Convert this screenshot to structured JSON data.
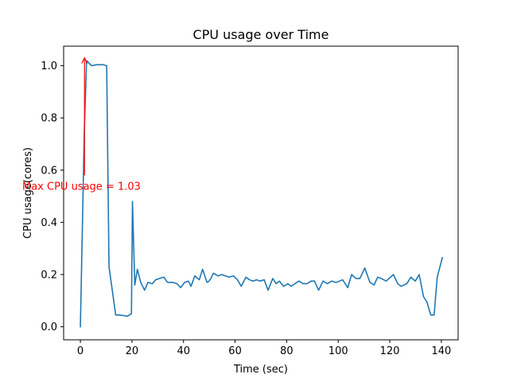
{
  "chart_data": {
    "type": "line",
    "title": "CPU usage over Time",
    "xlabel": "Time (sec)",
    "ylabel": "CPU usage(cores)",
    "xlim": [
      -6.5,
      146.5
    ],
    "ylim": [
      -0.05,
      1.075
    ],
    "xticks": [
      0,
      20,
      40,
      60,
      80,
      100,
      120,
      140
    ],
    "yticks": [
      0.0,
      0.2,
      0.4,
      0.6,
      0.8,
      1.0
    ],
    "ytick_labels": [
      "0.0",
      "0.2",
      "0.4",
      "0.6",
      "0.8",
      "1.0"
    ],
    "grid": false,
    "line_color": "#1f77b4",
    "series": [
      {
        "name": "CPU usage",
        "x": [
          0,
          1.5,
          2.4,
          4.3,
          6.2,
          8.7,
          10.2,
          11.1,
          13.7,
          14.9,
          16.8,
          18.2,
          19.8,
          20.2,
          21.1,
          22.1,
          23.4,
          24.9,
          26.2,
          27.9,
          29.2,
          30.7,
          32.4,
          33.8,
          35.9,
          37.5,
          38.9,
          40.4,
          41.9,
          42.9,
          44.4,
          46.1,
          47.4,
          49.1,
          49.9,
          50.6,
          51.6,
          53.4,
          54.9,
          56.2,
          57.7,
          59.4,
          60.9,
          62.4,
          64.2,
          65.6,
          66.9,
          68.4,
          69.7,
          71.3,
          72.8,
          74.6,
          75.9,
          77.2,
          78.8,
          80.5,
          81.7,
          83.2,
          84.8,
          86.4,
          87.9,
          89.5,
          90.8,
          92.4,
          94.1,
          95.8,
          97.5,
          99.1,
          100.5,
          101.7,
          103.7,
          105.2,
          106.9,
          108.4,
          110.3,
          112.3,
          113.9,
          115.3,
          116.7,
          118.6,
          121.4,
          123.1,
          124.4,
          126.6,
          128.2,
          129.9,
          131.4,
          133.1,
          134.4,
          135.9,
          137.2,
          138.4,
          140.4
        ],
        "y": [
          0.0,
          0.74,
          1.02,
          1.0,
          1.004,
          1.004,
          1.0,
          0.23,
          0.045,
          0.045,
          0.043,
          0.04,
          0.05,
          0.48,
          0.16,
          0.22,
          0.17,
          0.14,
          0.17,
          0.165,
          0.18,
          0.185,
          0.19,
          0.17,
          0.17,
          0.165,
          0.15,
          0.17,
          0.175,
          0.155,
          0.195,
          0.18,
          0.22,
          0.17,
          0.175,
          0.185,
          0.205,
          0.195,
          0.2,
          0.195,
          0.19,
          0.195,
          0.18,
          0.155,
          0.19,
          0.18,
          0.175,
          0.18,
          0.175,
          0.18,
          0.14,
          0.185,
          0.165,
          0.175,
          0.155,
          0.165,
          0.155,
          0.165,
          0.175,
          0.165,
          0.165,
          0.175,
          0.175,
          0.14,
          0.175,
          0.165,
          0.175,
          0.17,
          0.175,
          0.18,
          0.15,
          0.2,
          0.185,
          0.185,
          0.225,
          0.17,
          0.16,
          0.19,
          0.185,
          0.175,
          0.2,
          0.165,
          0.155,
          0.165,
          0.19,
          0.175,
          0.2,
          0.115,
          0.095,
          0.045,
          0.045,
          0.19,
          0.265
        ]
      }
    ],
    "annotation": {
      "text": "Max CPU usage = 1.03",
      "color": "#ff0000",
      "point": [
        1.6,
        1.03
      ],
      "text_pos": [
        1.6,
        0.58
      ]
    }
  }
}
